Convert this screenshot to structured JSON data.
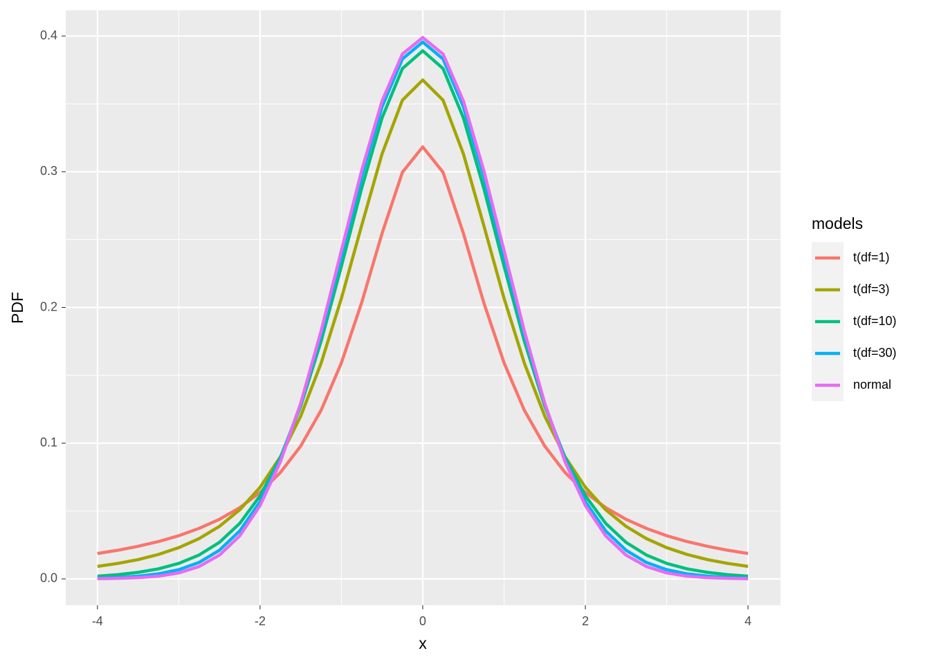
{
  "chart_data": {
    "type": "line",
    "x_label": "x",
    "y_label": "PDF",
    "legend_title": "models",
    "legend_position": "right",
    "grid": true,
    "xlim": [
      -4.39,
      4.4
    ],
    "ylim": [
      -0.0194,
      0.4189
    ],
    "xticks": [
      -4,
      -2,
      0,
      2,
      4
    ],
    "yticks": [
      {
        "value": 0,
        "label": "0.0"
      },
      0.1,
      0.2,
      0.3,
      0.4
    ],
    "x": [
      -4,
      -3.75,
      -3.5,
      -3.25,
      -3,
      -2.75,
      -2.5,
      -2.25,
      -2,
      -1.75,
      -1.5,
      -1.25,
      -1,
      -0.75,
      -0.5,
      -0.25,
      0,
      0.25,
      0.5,
      0.75,
      1,
      1.25,
      1.5,
      1.75,
      2,
      2.25,
      2.5,
      2.75,
      3,
      3.25,
      3.5,
      3.75,
      4
    ],
    "series": [
      {
        "name": "t(df=1)",
        "color": "#F8766D",
        "values": [
          0.0187,
          0.0211,
          0.024,
          0.0275,
          0.0318,
          0.0372,
          0.0439,
          0.0525,
          0.0637,
          0.0784,
          0.0979,
          0.1242,
          0.1592,
          0.2037,
          0.2546,
          0.2996,
          0.3183,
          0.2996,
          0.2546,
          0.2037,
          0.1592,
          0.1242,
          0.0979,
          0.0784,
          0.0637,
          0.0525,
          0.0439,
          0.0372,
          0.0318,
          0.0275,
          0.024,
          0.0211,
          0.0187
        ]
      },
      {
        "name": "t(df=3)",
        "color": "#A3A500",
        "values": [
          0.0092,
          0.0114,
          0.0142,
          0.018,
          0.023,
          0.0297,
          0.0387,
          0.0509,
          0.0675,
          0.09,
          0.12,
          0.1589,
          0.2067,
          0.2606,
          0.3132,
          0.3527,
          0.3676,
          0.3527,
          0.3132,
          0.2606,
          0.2067,
          0.1589,
          0.12,
          0.09,
          0.0675,
          0.0509,
          0.0387,
          0.0297,
          0.023,
          0.018,
          0.0142,
          0.0114,
          0.0092
        ]
      },
      {
        "name": "t(df=10)",
        "color": "#00BF7D",
        "values": [
          0.002,
          0.0031,
          0.0048,
          0.0074,
          0.0114,
          0.0176,
          0.0269,
          0.0409,
          0.0612,
          0.0895,
          0.1274,
          0.1751,
          0.2304,
          0.288,
          0.3397,
          0.376,
          0.3891,
          0.376,
          0.3397,
          0.288,
          0.2304,
          0.1751,
          0.1274,
          0.0895,
          0.0612,
          0.0409,
          0.0269,
          0.0176,
          0.0114,
          0.0074,
          0.0048,
          0.0031,
          0.002
        ]
      },
      {
        "name": "t(df=30)",
        "color": "#00B0F6",
        "values": [
          0.0005,
          0.001,
          0.002,
          0.0037,
          0.0068,
          0.0121,
          0.0211,
          0.0353,
          0.0569,
          0.0877,
          0.129,
          0.1801,
          0.238,
          0.2967,
          0.3479,
          0.3831,
          0.3956,
          0.3831,
          0.3479,
          0.2967,
          0.238,
          0.1801,
          0.129,
          0.0877,
          0.0569,
          0.0353,
          0.0211,
          0.0121,
          0.0068,
          0.0037,
          0.002,
          0.001,
          0.0005
        ]
      },
      {
        "name": "normal",
        "color": "#E76BF3",
        "values": [
          0.0001,
          0.0004,
          0.0009,
          0.002,
          0.0044,
          0.0091,
          0.0175,
          0.0317,
          0.054,
          0.0863,
          0.1295,
          0.1826,
          0.242,
          0.3011,
          0.3521,
          0.3867,
          0.3989,
          0.3867,
          0.3521,
          0.3011,
          0.242,
          0.1826,
          0.1295,
          0.0863,
          0.054,
          0.0317,
          0.0175,
          0.0091,
          0.0044,
          0.002,
          0.0009,
          0.0004,
          0.0001
        ]
      }
    ]
  }
}
